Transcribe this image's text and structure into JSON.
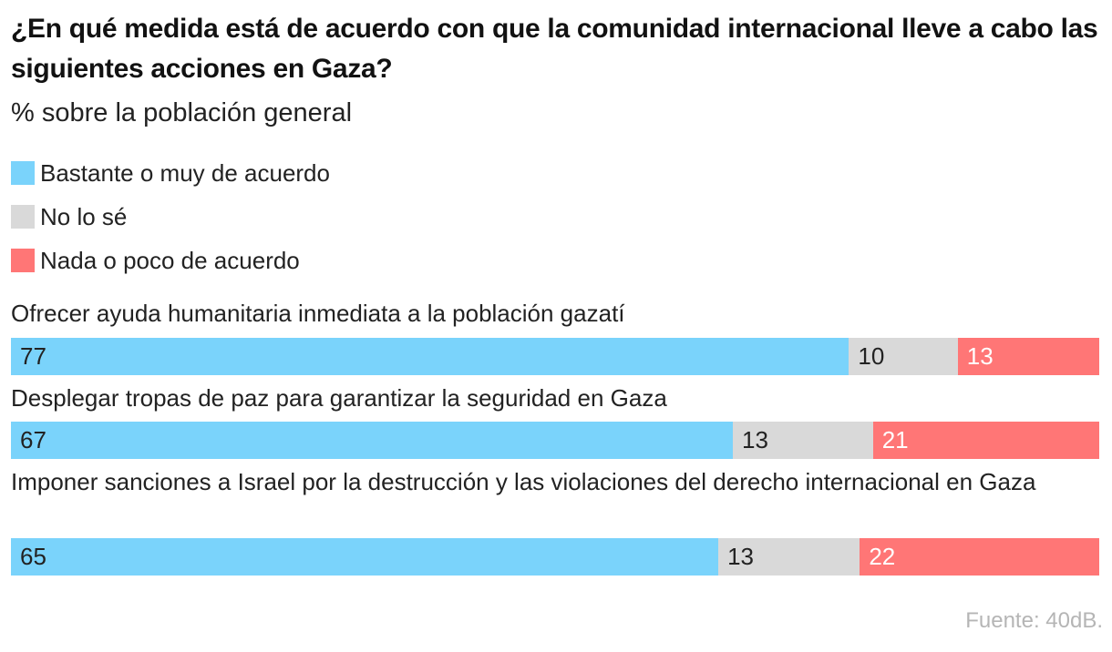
{
  "title": "¿En qué medida está de acuerdo con que la comunidad internacional lleve a cabo las siguientes acciones en Gaza?",
  "subtitle": "% sobre la población general",
  "legend": [
    {
      "key": "agree",
      "label": "Bastante o muy de acuerdo",
      "color": "#7ad3fb"
    },
    {
      "key": "unsure",
      "label": "No lo sé",
      "color": "#d9d9d9"
    },
    {
      "key": "disagree",
      "label": "Nada o poco de acuerdo",
      "color": "#ff7676"
    }
  ],
  "source": "Fuente: 40dB.",
  "chart_data": {
    "type": "bar",
    "orientation": "horizontal",
    "stacked": true,
    "title": "¿En qué medida está de acuerdo con que la comunidad internacional lleve a cabo las siguientes acciones en Gaza?",
    "subtitle": "% sobre la población general",
    "categories": [
      "Ofrecer ayuda humanitaria inmediata a la población gazatí",
      "Desplegar tropas de paz para garantizar la seguridad en Gaza",
      "Imponer sanciones a Israel por la destrucción y las violaciones del derecho internacional en Gaza"
    ],
    "series": [
      {
        "name": "Bastante o muy de acuerdo",
        "key": "agree",
        "values": [
          77,
          67,
          65
        ]
      },
      {
        "name": "No lo sé",
        "key": "unsure",
        "values": [
          10,
          13,
          13
        ]
      },
      {
        "name": "Nada o poco de acuerdo",
        "key": "disagree",
        "values": [
          13,
          21,
          22
        ]
      }
    ],
    "xlim": [
      0,
      100
    ],
    "xlabel": "",
    "ylabel": "",
    "legend_position": "top-left",
    "grid": false
  }
}
